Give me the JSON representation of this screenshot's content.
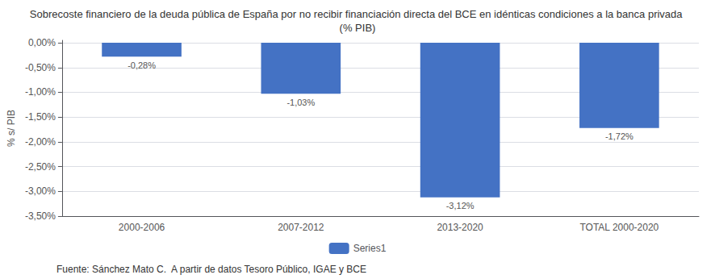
{
  "chart_data": {
    "type": "bar",
    "title": "Sobrecoste financiero de la deuda pública de España por no recibir financiación directa del BCE en idénticas condiciones a la banca privada (% PIB)",
    "categories": [
      "2000-2006",
      "2007-2012",
      "2013-2020",
      "TOTAL 2000-2020"
    ],
    "series": [
      {
        "name": "Series1",
        "color": "#4472C4",
        "values": [
          -0.28,
          -1.03,
          -3.12,
          -1.72
        ],
        "value_labels": [
          "-0,28%",
          "-1,03%",
          "-3,12%",
          "-1,72%"
        ]
      }
    ],
    "ylabel": "% s/ PIB",
    "ylim": [
      -3.5,
      0.05
    ],
    "yticks": [
      {
        "value": 0.0,
        "label": "0,00%"
      },
      {
        "value": -0.5,
        "label": "-0,50%"
      },
      {
        "value": -1.0,
        "label": "-1,00%"
      },
      {
        "value": -1.5,
        "label": "-1,50%"
      },
      {
        "value": -2.0,
        "label": "-2,00%"
      },
      {
        "value": -2.5,
        "label": "-2,50%"
      },
      {
        "value": -3.0,
        "label": "-3,00%"
      },
      {
        "value": -3.5,
        "label": "-3,50%"
      }
    ],
    "grid": true,
    "data_labels": true,
    "legend": "bottom",
    "annotations": [
      "Fuente: Sánchez Mato C.  A partir de datos Tesoro Público, IGAE y BCE"
    ]
  }
}
